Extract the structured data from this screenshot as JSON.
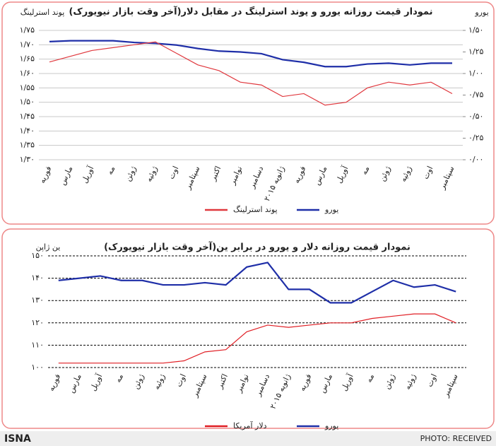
{
  "chart_data": [
    {
      "type": "line",
      "title": "نمودار قیمت روزانه یورو و پوند استرلینگ در مقابل دلار(آخر وقت بازار نیویورک)",
      "ylabel": "پوند استرلینگ",
      "y2label": "یورو",
      "categories": [
        "فوریه",
        "مارس",
        "آوریل",
        "مه",
        "ژوئن",
        "ژوئیه",
        "اوت",
        "سپتامبر",
        "اکتبر",
        "نوامبر",
        "دسامبر",
        "ژانویه ۲۰۱۵",
        "فوریه",
        "مارس",
        "آوریل",
        "مه",
        "ژوئن",
        "ژوئیه",
        "اوت",
        "سپتامبر"
      ],
      "series": [
        {
          "name": "یورو",
          "color": "#1f2fa8",
          "axis": "y2",
          "values": [
            1.37,
            1.38,
            1.38,
            1.38,
            1.36,
            1.35,
            1.33,
            1.29,
            1.26,
            1.25,
            1.23,
            1.16,
            1.13,
            1.08,
            1.08,
            1.11,
            1.12,
            1.1,
            1.12,
            1.12
          ]
        },
        {
          "name": "پوند استرلینگ",
          "color": "#e0383e",
          "values": [
            1.64,
            1.66,
            1.68,
            1.69,
            1.7,
            1.71,
            1.67,
            1.63,
            1.61,
            1.57,
            1.56,
            1.52,
            1.53,
            1.49,
            1.5,
            1.55,
            1.57,
            1.56,
            1.57,
            1.53
          ]
        }
      ],
      "ylim": [
        1.3,
        1.75
      ],
      "yticks": [
        {
          "value": 1.3,
          "label": "۱/۳۰"
        },
        {
          "value": 1.35,
          "label": "۱/۳۵"
        },
        {
          "value": 1.4,
          "label": "۱/۴۰"
        },
        {
          "value": 1.45,
          "label": "۱/۴۵"
        },
        {
          "value": 1.5,
          "label": "۱/۵۰"
        },
        {
          "value": 1.55,
          "label": "۱/۵۵"
        },
        {
          "value": 1.6,
          "label": "۱/۶۰"
        },
        {
          "value": 1.65,
          "label": "۱/۶۵"
        },
        {
          "value": 1.7,
          "label": "۱/۷۰"
        },
        {
          "value": 1.75,
          "label": "۱/۷۵"
        }
      ],
      "y2lim": [
        0,
        1.5
      ],
      "y2ticks": [
        {
          "value": 0,
          "label": "۰/۰۰"
        },
        {
          "value": 0.25,
          "label": "۰/۲۵"
        },
        {
          "value": 0.5,
          "label": "۰/۵۰"
        },
        {
          "value": 0.75,
          "label": "۰/۷۵"
        },
        {
          "value": 1,
          "label": "۱/۰۰"
        },
        {
          "value": 1.25,
          "label": "۱/۲۵"
        },
        {
          "value": 1.5,
          "label": "۱/۵۰"
        }
      ],
      "grid": true
    },
    {
      "type": "line",
      "title": "نمودار قیمت روزانه دلار و یورو در برابر ین(آخر وقت بازار نیویورک)",
      "ylabel": "ین ژاپن",
      "categories": [
        "فوریه",
        "مارس",
        "آوریل",
        "مه",
        "ژوئن",
        "ژوئیه",
        "اوت",
        "سپتامبر",
        "اکتبر",
        "نوامبر",
        "دسامبر",
        "ژانویه ۲۰۱۵",
        "فوریه",
        "مارس",
        "آوریل",
        "مه",
        "ژوئن",
        "ژوئیه",
        "اوت",
        "سپتامبر"
      ],
      "series": [
        {
          "name": "یورو",
          "color": "#1f2fa8",
          "values": [
            139,
            140,
            141,
            139,
            139,
            137,
            137,
            138,
            137,
            145,
            147,
            135,
            135,
            129,
            129,
            134,
            139,
            136,
            137,
            134
          ]
        },
        {
          "name": "دلار آمریکا",
          "color": "#e01e24",
          "values": [
            102,
            102,
            102,
            102,
            102,
            102,
            103,
            107,
            108,
            116,
            119,
            118,
            119,
            120,
            120,
            122,
            123,
            124,
            124,
            120
          ]
        }
      ],
      "ylim": [
        100,
        150
      ],
      "yticks": [
        {
          "value": 100,
          "label": "۱۰۰"
        },
        {
          "value": 110,
          "label": "۱۱۰"
        },
        {
          "value": 120,
          "label": "۱۲۰"
        },
        {
          "value": 130,
          "label": "۱۳۰"
        },
        {
          "value": 140,
          "label": "۱۴۰"
        },
        {
          "value": 150,
          "label": "۱۵۰"
        }
      ],
      "grid": true
    }
  ],
  "credit": {
    "agency": "ISNA",
    "photo": "PHOTO: RECEIVED"
  }
}
